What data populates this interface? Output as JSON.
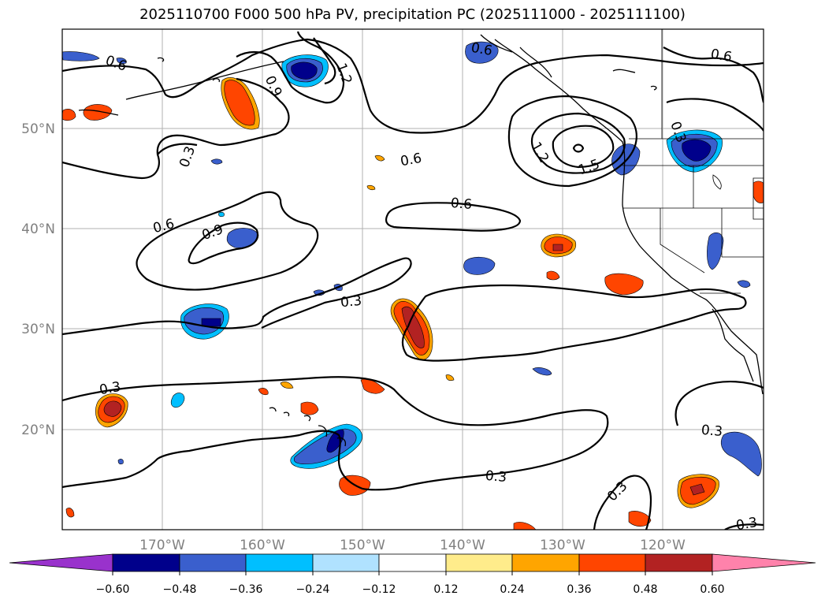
{
  "title": "2025110700 F000 500 hPa PV, precipitation PC (2025111000 - 2025111100)",
  "map": {
    "projection": "PlateCarree",
    "lon_range": [
      -180,
      -110
    ],
    "lat_range": [
      10,
      60
    ],
    "grid": true,
    "lat_ticks": [
      {
        "value": 50,
        "label": "50°N"
      },
      {
        "value": 40,
        "label": "40°N"
      },
      {
        "value": 30,
        "label": "30°N"
      },
      {
        "value": 20,
        "label": "20°N"
      }
    ],
    "lon_ticks": [
      {
        "value": -170,
        "label": "170°W"
      },
      {
        "value": -160,
        "label": "160°W"
      },
      {
        "value": -150,
        "label": "150°W"
      },
      {
        "value": -140,
        "label": "140°W"
      },
      {
        "value": -130,
        "label": "130°W"
      },
      {
        "value": -120,
        "label": "120°W"
      }
    ],
    "contour_labels": [
      "0.6",
      "0.9",
      "1.2",
      "0.3",
      "0.6",
      "0.6",
      "1.2",
      "1.5",
      "0.6",
      "0.6",
      "0.9",
      "0.3",
      "0.3",
      "0.3",
      "0.3",
      "0.3",
      "0.3",
      "0.6",
      "0.3"
    ]
  },
  "colorbar": {
    "colors": [
      "#9932cc",
      "#00008b",
      "#3a5fcd",
      "#00bfff",
      "#b0e2ff",
      "#ffffff",
      "#ffec8b",
      "#ffa500",
      "#ff4500",
      "#b22222",
      "#ff82ab"
    ],
    "tick_labels": [
      "−0.60",
      "−0.48",
      "−0.36",
      "−0.24",
      "−0.12",
      "0.12",
      "0.24",
      "0.36",
      "0.48",
      "0.60"
    ]
  }
}
